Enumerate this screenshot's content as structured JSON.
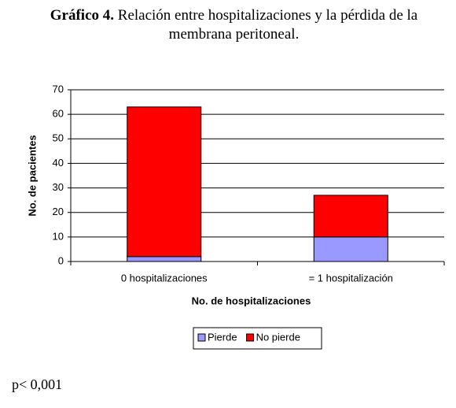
{
  "chart_data": {
    "type": "stacked_bar",
    "title_label": "Gráfico 4.",
    "title": "Relación entre hospitalizaciones y la pérdida de la membrana peritoneal.",
    "categories": [
      "0 hospitalizaciones",
      "= 1 hospitalización"
    ],
    "series": [
      {
        "name": "Pierde",
        "color": "#9999ff",
        "values": [
          2,
          10
        ]
      },
      {
        "name": "No pierde",
        "color": "#ff0000",
        "values": [
          61,
          17
        ]
      }
    ],
    "ylim": [
      0,
      70
    ],
    "yticks": [
      0,
      10,
      20,
      30,
      40,
      50,
      60,
      70
    ],
    "grid": true,
    "x_label": "No. de hospitalizaciones",
    "y_label": "No. de pacientes",
    "legend": "bottom",
    "note": "p< 0,001"
  }
}
